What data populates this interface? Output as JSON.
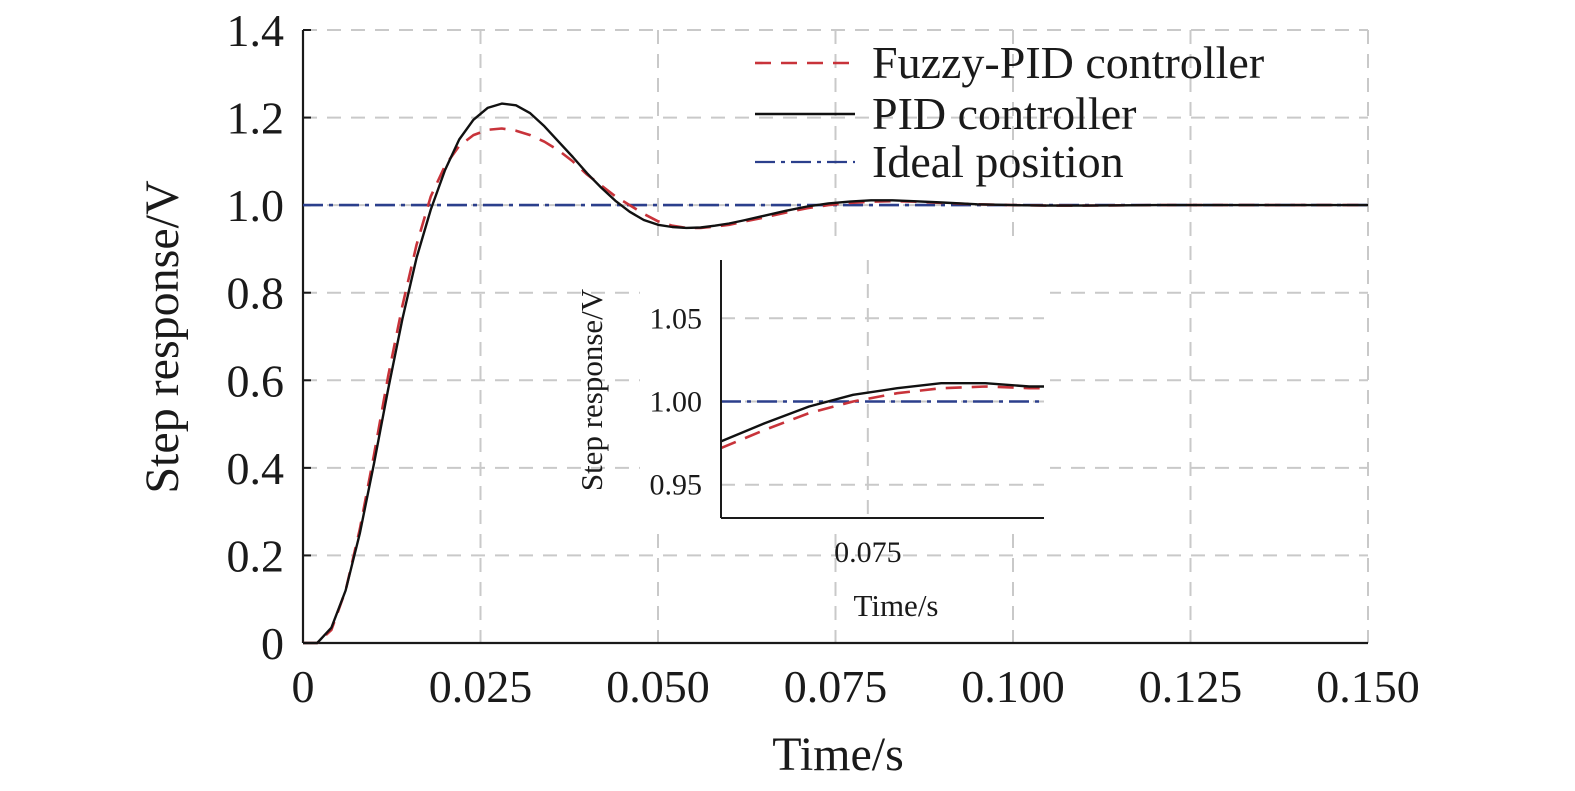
{
  "chart_data": [
    {
      "type": "line",
      "xlabel": "Time/s",
      "ylabel": "Step response/V",
      "xlim": [
        0,
        0.15
      ],
      "ylim": [
        0,
        1.4
      ],
      "x_ticks": [
        "0",
        "0.025",
        "0.050",
        "0.075",
        "0.100",
        "0.125",
        "0.150"
      ],
      "y_ticks": [
        "0",
        "0.2",
        "0.4",
        "0.6",
        "0.8",
        "1.0",
        "1.2",
        "1.4"
      ],
      "grid": true,
      "legend_position": "top-right",
      "series": [
        {
          "name": "Fuzzy-PID controller",
          "color": "#c8333a",
          "style": "dashed",
          "points": [
            [
              0,
              0
            ],
            [
              0.002,
              0.0
            ],
            [
              0.004,
              0.03
            ],
            [
              0.006,
              0.12
            ],
            [
              0.008,
              0.26
            ],
            [
              0.01,
              0.43
            ],
            [
              0.012,
              0.61
            ],
            [
              0.014,
              0.77
            ],
            [
              0.016,
              0.91
            ],
            [
              0.018,
              1.02
            ],
            [
              0.02,
              1.09
            ],
            [
              0.022,
              1.135
            ],
            [
              0.024,
              1.16
            ],
            [
              0.026,
              1.172
            ],
            [
              0.028,
              1.175
            ],
            [
              0.03,
              1.17
            ],
            [
              0.032,
              1.16
            ],
            [
              0.034,
              1.145
            ],
            [
              0.036,
              1.125
            ],
            [
              0.038,
              1.1
            ],
            [
              0.04,
              1.07
            ],
            [
              0.042,
              1.045
            ],
            [
              0.044,
              1.02
            ],
            [
              0.046,
              1.0
            ],
            [
              0.048,
              0.98
            ],
            [
              0.05,
              0.963
            ],
            [
              0.052,
              0.953
            ],
            [
              0.054,
              0.948
            ],
            [
              0.056,
              0.948
            ],
            [
              0.058,
              0.951
            ],
            [
              0.06,
              0.955
            ],
            [
              0.062,
              0.962
            ],
            [
              0.065,
              0.972
            ],
            [
              0.068,
              0.983
            ],
            [
              0.071,
              0.993
            ],
            [
              0.074,
              1.0
            ],
            [
              0.077,
              1.005
            ],
            [
              0.08,
              1.008
            ],
            [
              0.083,
              1.009
            ],
            [
              0.086,
              1.008
            ],
            [
              0.09,
              1.005
            ],
            [
              0.095,
              1.002
            ],
            [
              0.1,
              1.0
            ],
            [
              0.105,
              0.999
            ],
            [
              0.11,
              0.999
            ],
            [
              0.12,
              1.0
            ],
            [
              0.13,
              1.0
            ],
            [
              0.14,
              1.0
            ],
            [
              0.15,
              1.0
            ]
          ]
        },
        {
          "name": "PID controller",
          "color": "#111111",
          "style": "solid",
          "points": [
            [
              0,
              0
            ],
            [
              0.002,
              0.0
            ],
            [
              0.004,
              0.035
            ],
            [
              0.006,
              0.12
            ],
            [
              0.008,
              0.25
            ],
            [
              0.01,
              0.41
            ],
            [
              0.012,
              0.58
            ],
            [
              0.014,
              0.74
            ],
            [
              0.016,
              0.88
            ],
            [
              0.018,
              0.99
            ],
            [
              0.02,
              1.08
            ],
            [
              0.022,
              1.15
            ],
            [
              0.024,
              1.195
            ],
            [
              0.026,
              1.222
            ],
            [
              0.028,
              1.232
            ],
            [
              0.03,
              1.228
            ],
            [
              0.032,
              1.21
            ],
            [
              0.034,
              1.18
            ],
            [
              0.036,
              1.145
            ],
            [
              0.038,
              1.11
            ],
            [
              0.04,
              1.073
            ],
            [
              0.042,
              1.04
            ],
            [
              0.044,
              1.01
            ],
            [
              0.046,
              0.985
            ],
            [
              0.048,
              0.966
            ],
            [
              0.05,
              0.955
            ],
            [
              0.052,
              0.95
            ],
            [
              0.054,
              0.948
            ],
            [
              0.056,
              0.949
            ],
            [
              0.058,
              0.953
            ],
            [
              0.06,
              0.958
            ],
            [
              0.062,
              0.965
            ],
            [
              0.065,
              0.976
            ],
            [
              0.068,
              0.987
            ],
            [
              0.071,
              0.997
            ],
            [
              0.074,
              1.004
            ],
            [
              0.077,
              1.008
            ],
            [
              0.08,
              1.011
            ],
            [
              0.083,
              1.011
            ],
            [
              0.086,
              1.009
            ],
            [
              0.09,
              1.006
            ],
            [
              0.095,
              1.002
            ],
            [
              0.1,
              1.0
            ],
            [
              0.105,
              0.999
            ],
            [
              0.11,
              0.999
            ],
            [
              0.12,
              1.0
            ],
            [
              0.13,
              1.0
            ],
            [
              0.14,
              1.0
            ],
            [
              0.15,
              1.0
            ]
          ]
        },
        {
          "name": "Ideal position",
          "color": "#2b3f8c",
          "style": "dashdot",
          "points": [
            [
              0,
              1.0
            ],
            [
              0.15,
              1.0
            ]
          ]
        }
      ]
    },
    {
      "type": "line",
      "xlabel": "Time/s",
      "ylabel": "Step response/V",
      "xlim": [
        0.065,
        0.087
      ],
      "ylim": [
        0.93,
        1.085
      ],
      "x_ticks": [
        "0.075"
      ],
      "y_ticks": [
        "0.95",
        "1.00",
        "1.05"
      ],
      "grid": true,
      "series": [
        {
          "ref": "Fuzzy-PID controller",
          "color": "#c8333a",
          "style": "dashed",
          "points": [
            [
              0.065,
              0.972
            ],
            [
              0.068,
              0.983
            ],
            [
              0.071,
              0.993
            ],
            [
              0.074,
              1.0
            ],
            [
              0.077,
              1.005
            ],
            [
              0.08,
              1.008
            ],
            [
              0.083,
              1.009
            ],
            [
              0.086,
              1.008
            ],
            [
              0.087,
              1.008
            ]
          ]
        },
        {
          "ref": "PID controller",
          "color": "#111111",
          "style": "solid",
          "points": [
            [
              0.065,
              0.976
            ],
            [
              0.068,
              0.987
            ],
            [
              0.071,
              0.997
            ],
            [
              0.074,
              1.004
            ],
            [
              0.077,
              1.008
            ],
            [
              0.08,
              1.011
            ],
            [
              0.083,
              1.011
            ],
            [
              0.086,
              1.009
            ],
            [
              0.087,
              1.009
            ]
          ]
        },
        {
          "ref": "Ideal position",
          "color": "#2b3f8c",
          "style": "dashdot",
          "points": [
            [
              0.065,
              1.0
            ],
            [
              0.087,
              1.0
            ]
          ]
        }
      ]
    }
  ]
}
